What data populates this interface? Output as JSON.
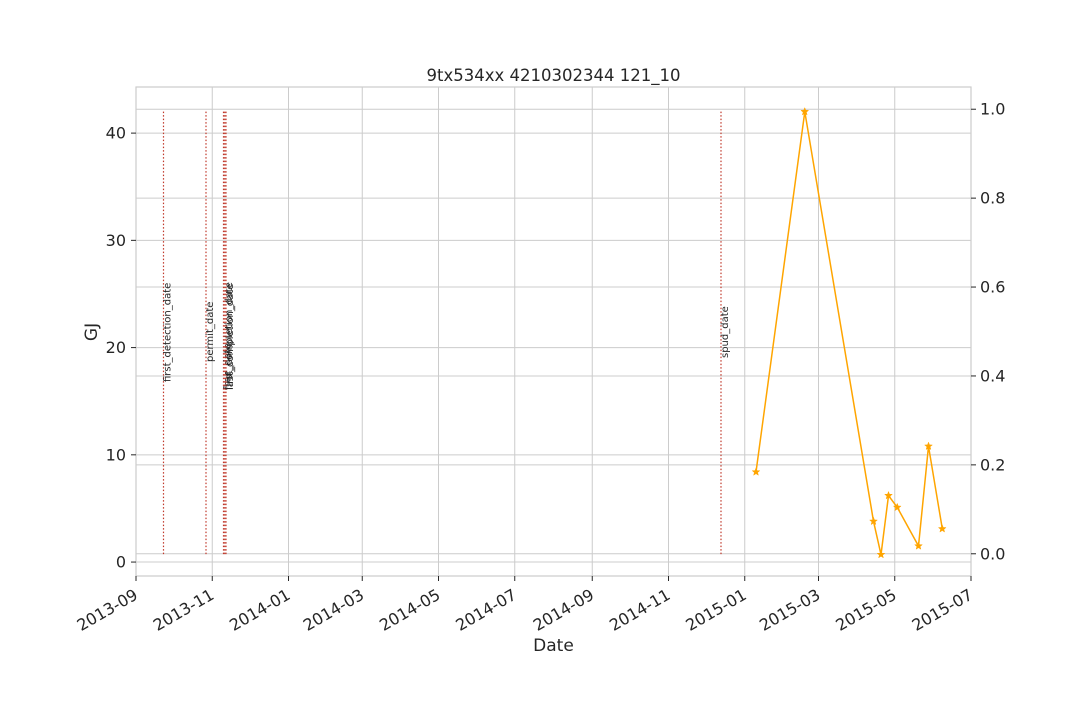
{
  "chart_data": {
    "type": "line",
    "title": "9tx534xx 4210302344 121_10",
    "xlabel": "Date",
    "ylabel": "GJ",
    "ylabel_color": "#1f77b4",
    "grid": true,
    "xlim": [
      "2013-09-01",
      "2015-07-01"
    ],
    "ylim": [
      -1.3,
      44.3
    ],
    "y2lim": [
      -0.05,
      1.05
    ],
    "x_ticks": [
      "2013-09",
      "2013-11",
      "2014-01",
      "2014-03",
      "2014-05",
      "2014-07",
      "2014-09",
      "2014-11",
      "2015-01",
      "2015-03",
      "2015-05",
      "2015-07"
    ],
    "y_ticks": [
      0,
      10,
      20,
      30,
      40
    ],
    "y2_ticks": [
      "0.0",
      "0.2",
      "0.4",
      "0.6",
      "0.8",
      "1.0"
    ],
    "series": [
      {
        "color": "#ffa500",
        "marker": "star",
        "x": [
          "2015-01-10",
          "2015-02-18",
          "2015-04-14",
          "2015-04-20",
          "2015-04-26",
          "2015-05-03",
          "2015-05-20",
          "2015-05-28",
          "2015-06-08"
        ],
        "y": [
          8.4,
          42.0,
          3.8,
          0.7,
          6.2,
          5.1,
          1.5,
          10.8,
          3.1
        ]
      }
    ],
    "events": [
      {
        "label": "first_detection_date",
        "date": "2013-09-23",
        "color": "#c0392b"
      },
      {
        "label": "permit_date",
        "date": "2013-10-27",
        "color": "#c0392b"
      },
      {
        "label": "frac_date",
        "date": "2013-11-10",
        "color": "#c0392b"
      },
      {
        "label": "first_completion_date",
        "date": "2013-11-11",
        "color": "#c0392b"
      },
      {
        "label": "last_completion_date",
        "date": "2013-11-12",
        "color": "#c0392b"
      },
      {
        "label": "spud_date",
        "date": "2014-12-13",
        "color": "#c0392b"
      }
    ]
  }
}
